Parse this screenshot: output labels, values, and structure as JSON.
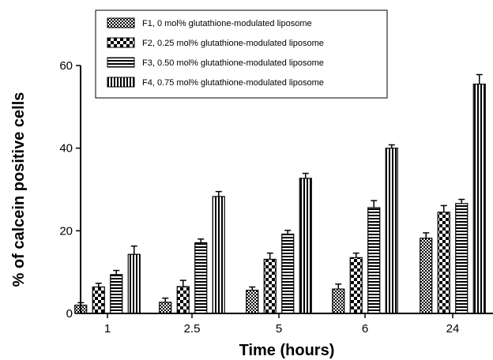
{
  "chart_data": {
    "type": "bar",
    "xlabel": "Time (hours)",
    "ylabel": "% of calcein positive cells",
    "ylim": [
      0,
      60
    ],
    "yticks": [
      0,
      20,
      40,
      60
    ],
    "categories": [
      "1",
      "2.5",
      "5",
      "6",
      "24"
    ],
    "grid": false,
    "legend_position": "top-center",
    "series": [
      {
        "name": "F1, 0 mol% glutathione-modulated liposome",
        "pattern": "checker-small",
        "values": [
          2.0,
          2.7,
          5.6,
          5.9,
          18.2
        ],
        "errors": [
          0.6,
          1.0,
          0.8,
          1.2,
          1.3
        ]
      },
      {
        "name": "F2, 0.25 mol% glutathione-modulated liposome",
        "pattern": "checker-large",
        "values": [
          6.4,
          6.5,
          13.1,
          13.5,
          24.5
        ],
        "errors": [
          0.9,
          1.5,
          1.5,
          1.1,
          1.6
        ]
      },
      {
        "name": "F3, 0.50 mol% glutathione-modulated liposome",
        "pattern": "horizontal-stripes",
        "values": [
          9.4,
          17.1,
          19.2,
          25.6,
          26.6
        ],
        "errors": [
          1.0,
          0.9,
          0.9,
          1.7,
          1.0
        ]
      },
      {
        "name": "F4, 0.75 mol% glutathione-modulated liposome",
        "pattern": "vertical-stripes",
        "values": [
          14.3,
          28.3,
          32.7,
          40.0,
          55.5
        ],
        "errors": [
          2.0,
          1.2,
          1.2,
          0.8,
          2.3
        ]
      }
    ]
  }
}
